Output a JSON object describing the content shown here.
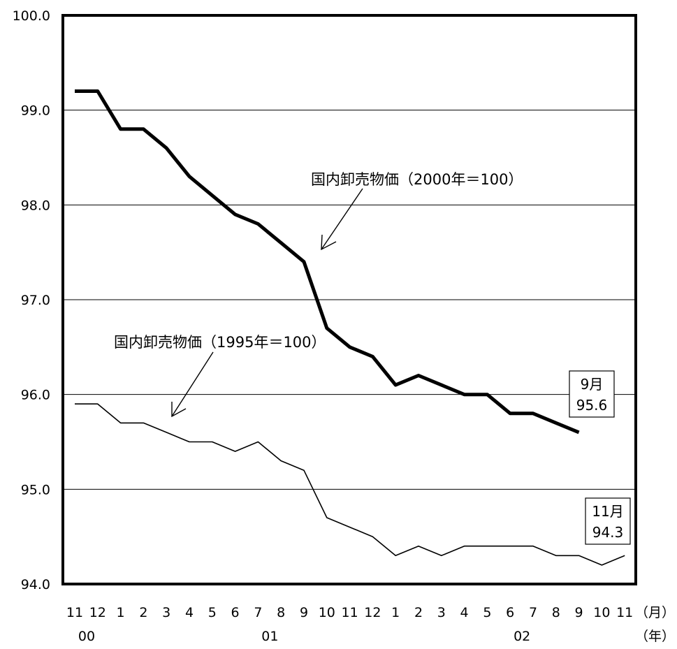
{
  "chart_data": {
    "type": "line",
    "x_labels": [
      "11",
      "12",
      "1",
      "2",
      "3",
      "4",
      "5",
      "6",
      "7",
      "8",
      "9",
      "10",
      "11",
      "12",
      "1",
      "2",
      "3",
      "4",
      "5",
      "6",
      "7",
      "8",
      "9",
      "10",
      "11"
    ],
    "year_labels": [
      {
        "index": 0,
        "label": "00"
      },
      {
        "index": 8,
        "label": "01"
      },
      {
        "index": 19,
        "label": "02"
      }
    ],
    "x_unit_month": "（月）",
    "x_unit_year": "（年）",
    "y_ticks": [
      "100.0",
      "99.0",
      "98.0",
      "97.0",
      "96.0",
      "95.0",
      "94.0"
    ],
    "ylim": [
      94.0,
      100.0
    ],
    "grid": true,
    "series": [
      {
        "name": "国内卸売物価（2000年＝100）",
        "values": [
          99.2,
          99.2,
          98.8,
          98.8,
          98.6,
          98.3,
          98.1,
          97.9,
          97.8,
          97.6,
          97.4,
          96.7,
          96.5,
          96.4,
          96.1,
          96.2,
          96.1,
          96.0,
          96.0,
          95.8,
          95.8,
          95.7,
          95.6
        ],
        "color": "#000000",
        "weight": "thick"
      },
      {
        "name": "国内卸売物価（1995年＝100）",
        "values": [
          95.9,
          95.9,
          95.7,
          95.7,
          95.6,
          95.5,
          95.5,
          95.4,
          95.5,
          95.3,
          95.2,
          94.7,
          94.6,
          94.5,
          94.3,
          94.4,
          94.3,
          94.4,
          94.4,
          94.4,
          94.4,
          94.3,
          94.3,
          94.2,
          94.3
        ],
        "color": "#000000",
        "weight": "thin"
      }
    ],
    "end_labels": [
      {
        "line1": "9月",
        "line2": "95.6"
      },
      {
        "line1": "11月",
        "line2": "94.3"
      }
    ]
  }
}
